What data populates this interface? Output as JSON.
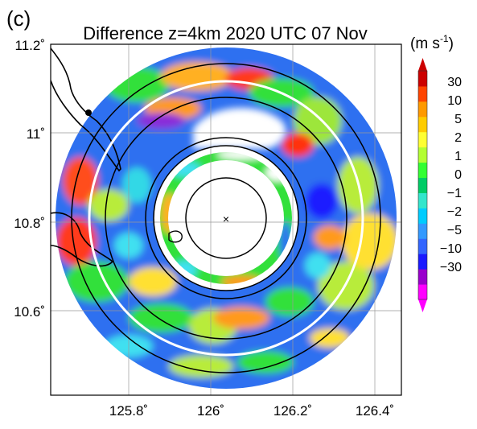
{
  "panel_label": "(c)",
  "title": "Difference z=4km 2020 UTC 07 Nov",
  "colorbar": {
    "unit_main": "(m s",
    "unit_exp": "-1",
    "unit_close": ")",
    "ticks": [
      "30",
      "10",
      "5",
      "2",
      "1",
      "0",
      "−1",
      "−2",
      "−5",
      "−10",
      "−30"
    ],
    "colors": [
      "#ff00ff",
      "#9900cc",
      "#1a1aff",
      "#3366ff",
      "#3399ff",
      "#00ccff",
      "#33e6cc",
      "#00cc66",
      "#33ff33",
      "#b3ff33",
      "#ffff33",
      "#ffcc00",
      "#ff9900",
      "#ff4400",
      "#cc0000"
    ]
  },
  "map": {
    "x_ticks": [
      "125.8˚",
      "126˚",
      "126.2˚",
      "126.4˚"
    ],
    "y_ticks": [
      "11.2˚",
      "11˚",
      "10.8˚",
      "10.6˚"
    ],
    "center_marker": "×"
  },
  "chart_data": {
    "type": "heatmap",
    "title": "Difference z=4km 2020 UTC 07 Nov",
    "x_ticks_deg": [
      125.8,
      126.0,
      126.2,
      126.4
    ],
    "y_ticks_deg": [
      11.2,
      11.0,
      10.8,
      10.6
    ],
    "xlim": [
      125.67,
      126.47
    ],
    "ylim": [
      10.43,
      11.2
    ],
    "storm_center": {
      "lon": 126.08,
      "lat": 10.81
    },
    "colorbar_levels": [
      30,
      10,
      5,
      2,
      1,
      0,
      -1,
      -2,
      -5,
      -10,
      -30
    ],
    "colorbar_unit": "m s-1",
    "range_rings_km": [
      10,
      20,
      40,
      60
    ]
  }
}
